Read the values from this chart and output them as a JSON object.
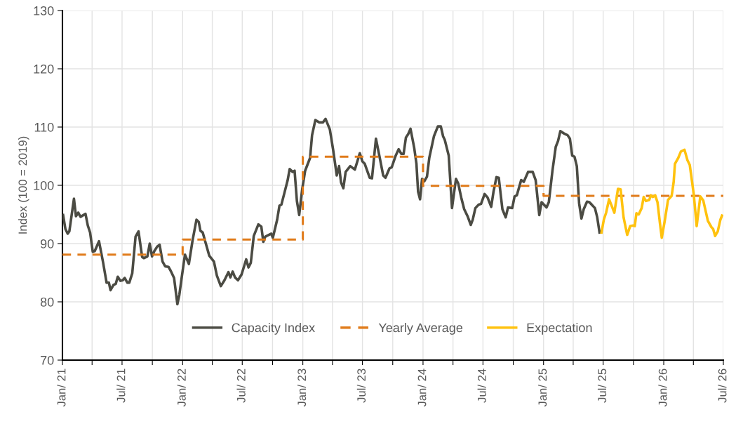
{
  "chart_data": {
    "type": "line",
    "ylabel": "Index (100 = 2019)",
    "xlim": [
      "2021-01-01",
      "2026-07-01"
    ],
    "ylim": [
      70,
      130
    ],
    "xticks": [
      {
        "value": "2021-01-01",
        "label": "Jan/ 21"
      },
      {
        "value": "2021-04-01",
        "label": null
      },
      {
        "value": "2021-07-01",
        "label": "Jul/ 21"
      },
      {
        "value": "2021-10-01",
        "label": null
      },
      {
        "value": "2022-01-01",
        "label": "Jan/ 22"
      },
      {
        "value": "2022-04-01",
        "label": null
      },
      {
        "value": "2022-07-01",
        "label": "Jul/ 22"
      },
      {
        "value": "2022-10-01",
        "label": null
      },
      {
        "value": "2023-01-01",
        "label": "Jan/ 23"
      },
      {
        "value": "2023-04-01",
        "label": null
      },
      {
        "value": "2023-07-01",
        "label": "Jul/ 23"
      },
      {
        "value": "2023-10-01",
        "label": null
      },
      {
        "value": "2024-01-01",
        "label": "Jan/ 24"
      },
      {
        "value": "2024-04-01",
        "label": null
      },
      {
        "value": "2024-07-01",
        "label": "Jul/ 24"
      },
      {
        "value": "2024-10-01",
        "label": null
      },
      {
        "value": "2025-01-01",
        "label": "Jan/ 25"
      },
      {
        "value": "2025-04-01",
        "label": null
      },
      {
        "value": "2025-07-01",
        "label": "Jul/ 25"
      },
      {
        "value": "2025-10-01",
        "label": null
      },
      {
        "value": "2026-01-01",
        "label": "Jan/ 26"
      },
      {
        "value": "2026-04-01",
        "label": null
      },
      {
        "value": "2026-07-01",
        "label": "Jul/ 26"
      }
    ],
    "yticks": [
      70,
      80,
      90,
      100,
      110,
      120,
      130
    ],
    "grid": true,
    "legend": "bottom",
    "marker": "none",
    "series": [
      {
        "name": "Capacity Index",
        "type": "line",
        "line_style": "solid",
        "color": "#4b4b43",
        "x": [
          "2021-01-03",
          "2021-01-10",
          "2021-01-17",
          "2021-01-22",
          "2021-02-05",
          "2021-02-11",
          "2021-02-18",
          "2021-02-25",
          "2021-03-12",
          "2021-03-19",
          "2021-03-26",
          "2021-04-03",
          "2021-04-09",
          "2021-04-22",
          "2021-05-04",
          "2021-05-15",
          "2021-05-22",
          "2021-05-27",
          "2021-06-05",
          "2021-06-12",
          "2021-06-18",
          "2021-06-26",
          "2021-07-03",
          "2021-07-09",
          "2021-07-17",
          "2021-07-23",
          "2021-08-01",
          "2021-08-11",
          "2021-08-20",
          "2021-08-31",
          "2021-09-05",
          "2021-09-16",
          "2021-09-23",
          "2021-09-30",
          "2021-10-07",
          "2021-10-16",
          "2021-10-23",
          "2021-11-01",
          "2021-11-09",
          "2021-11-19",
          "2021-11-26",
          "2021-12-06",
          "2021-12-16",
          "2021-12-22",
          "2021-12-28",
          "2022-01-08",
          "2022-01-20",
          "2022-01-31",
          "2022-02-12",
          "2022-02-19",
          "2022-02-24",
          "2022-03-03",
          "2022-03-12",
          "2022-03-23",
          "2022-04-06",
          "2022-04-15",
          "2022-04-27",
          "2022-05-08",
          "2022-05-20",
          "2022-05-26",
          "2022-06-02",
          "2022-06-09",
          "2022-06-18",
          "2022-06-29",
          "2022-07-13",
          "2022-07-20",
          "2022-07-27",
          "2022-08-05",
          "2022-08-19",
          "2022-08-28",
          "2022-09-03",
          "2022-09-09",
          "2022-09-27",
          "2022-10-02",
          "2022-10-15",
          "2022-10-22",
          "2022-10-28",
          "2022-11-07",
          "2022-11-16",
          "2022-11-22",
          "2022-12-01",
          "2022-12-07",
          "2022-12-14",
          "2022-12-21",
          "2022-12-30",
          "2023-01-08",
          "2023-01-23",
          "2023-01-29",
          "2023-02-08",
          "2023-02-20",
          "2023-03-03",
          "2023-03-11",
          "2023-03-24",
          "2023-04-03",
          "2023-04-14",
          "2023-04-21",
          "2023-04-27",
          "2023-05-04",
          "2023-05-11",
          "2023-05-25",
          "2023-06-08",
          "2023-06-23",
          "2023-07-01",
          "2023-07-08",
          "2023-07-23",
          "2023-07-30",
          "2023-08-11",
          "2023-08-22",
          "2023-09-02",
          "2023-09-09",
          "2023-09-21",
          "2023-09-28",
          "2023-10-10",
          "2023-10-19",
          "2023-10-27",
          "2023-11-03",
          "2023-11-10",
          "2023-11-17",
          "2023-11-24",
          "2023-12-05",
          "2023-12-12",
          "2023-12-17",
          "2023-12-23",
          "2023-12-29",
          "2024-01-05",
          "2024-01-13",
          "2024-01-20",
          "2024-02-03",
          "2024-02-15",
          "2024-02-24",
          "2024-03-02",
          "2024-03-07",
          "2024-03-19",
          "2024-03-29",
          "2024-04-10",
          "2024-04-17",
          "2024-04-26",
          "2024-05-05",
          "2024-05-16",
          "2024-05-25",
          "2024-05-31",
          "2024-06-08",
          "2024-06-18",
          "2024-06-25",
          "2024-07-06",
          "2024-07-15",
          "2024-07-26",
          "2024-08-02",
          "2024-08-11",
          "2024-08-18",
          "2024-08-29",
          "2024-09-08",
          "2024-09-15",
          "2024-09-28",
          "2024-10-05",
          "2024-10-12",
          "2024-10-25",
          "2024-11-02",
          "2024-11-15",
          "2024-11-29",
          "2024-12-08",
          "2024-12-19",
          "2024-12-26",
          "2025-01-10",
          "2025-01-17",
          "2025-01-28",
          "2025-02-07",
          "2025-02-14",
          "2025-02-21",
          "2025-03-04",
          "2025-03-15",
          "2025-03-22",
          "2025-03-29",
          "2025-04-05",
          "2025-04-12",
          "2025-04-19",
          "2025-04-26",
          "2025-05-03",
          "2025-05-13",
          "2025-05-20",
          "2025-05-27",
          "2025-06-06",
          "2025-06-13",
          "2025-06-20"
        ],
        "values": [
          94.9,
          92.5,
          91.7,
          92.1,
          97.7,
          94.7,
          95.3,
          94.6,
          95.1,
          93.1,
          91.9,
          88.6,
          88.7,
          90.4,
          86.9,
          83.3,
          83.3,
          82.0,
          82.9,
          83.1,
          84.3,
          83.6,
          83.7,
          84.1,
          83.3,
          83.3,
          84.9,
          91.2,
          92.1,
          87.7,
          87.5,
          87.8,
          90.0,
          87.8,
          88.7,
          89.5,
          89.8,
          86.9,
          86.1,
          86.0,
          85.3,
          84.1,
          79.6,
          81.2,
          83.7,
          88.1,
          86.5,
          90.5,
          94.1,
          93.7,
          92.2,
          91.9,
          90.1,
          87.9,
          86.9,
          84.5,
          82.7,
          83.7,
          85.1,
          84.2,
          85.2,
          84.2,
          83.7,
          84.7,
          87.3,
          85.9,
          86.7,
          91.3,
          93.3,
          92.9,
          90.3,
          91.2,
          91.7,
          91.0,
          94.1,
          96.5,
          96.7,
          98.9,
          100.9,
          102.8,
          102.3,
          102.5,
          97.3,
          94.9,
          99.3,
          102.5,
          104.7,
          108.6,
          111.2,
          110.8,
          110.8,
          111.4,
          109.6,
          106.1,
          101.7,
          103.3,
          100.5,
          99.5,
          102.3,
          103.3,
          102.7,
          105.5,
          104.1,
          103.7,
          101.3,
          101.2,
          108.0,
          104.9,
          101.7,
          101.3,
          102.9,
          103.1,
          105.1,
          106.2,
          105.4,
          105.4,
          108.2,
          108.8,
          109.7,
          106.5,
          103.7,
          98.9,
          97.6,
          101.1,
          100.7,
          101.5,
          104.7,
          108.4,
          110.1,
          110.1,
          108.4,
          107.8,
          105.1,
          96.1,
          101.1,
          100.3,
          97.9,
          95.9,
          94.6,
          93.2,
          94.1,
          96.1,
          96.7,
          96.8,
          98.5,
          97.9,
          96.3,
          98.9,
          101.4,
          101.3,
          95.9,
          94.5,
          96.2,
          96.1,
          98.1,
          98.3,
          100.9,
          100.6,
          102.3,
          102.3,
          100.9,
          94.9,
          97.1,
          96.2,
          97.1,
          102.5,
          106.6,
          107.6,
          109.3,
          108.9,
          108.6,
          108.0,
          105.1,
          104.9,
          103.3,
          96.9,
          94.3,
          95.9,
          97.2,
          97.1,
          96.7,
          96.1,
          94.5,
          91.9
        ]
      },
      {
        "name": "Yearly Average",
        "type": "step",
        "line_style": "dashed",
        "color": "#e07b1a",
        "x": [
          "2021-01-01",
          "2022-01-01",
          "2023-01-01",
          "2024-01-01",
          "2025-01-01",
          "2026-07-01"
        ],
        "values": [
          88.1,
          90.7,
          104.9,
          99.9,
          98.2,
          98.2
        ]
      },
      {
        "name": "Expectation",
        "type": "line",
        "line_style": "solid",
        "color": "#ffc20e",
        "x": [
          "2025-06-26",
          "2025-07-03",
          "2025-07-10",
          "2025-07-19",
          "2025-07-28",
          "2025-08-04",
          "2025-08-15",
          "2025-08-23",
          "2025-09-01",
          "2025-09-12",
          "2025-09-21",
          "2025-09-30",
          "2025-10-05",
          "2025-10-10",
          "2025-10-17",
          "2025-10-26",
          "2025-11-01",
          "2025-11-08",
          "2025-11-18",
          "2025-11-23",
          "2025-11-29",
          "2025-12-06",
          "2025-12-13",
          "2025-12-20",
          "2025-12-26",
          "2026-01-04",
          "2026-01-14",
          "2026-01-25",
          "2026-01-31",
          "2026-02-04",
          "2026-02-14",
          "2026-02-22",
          "2026-03-05",
          "2026-03-14",
          "2026-03-21",
          "2026-04-02",
          "2026-04-11",
          "2026-04-22",
          "2026-05-01",
          "2026-05-15",
          "2026-05-26",
          "2026-05-31",
          "2026-06-06",
          "2026-06-14",
          "2026-06-22",
          "2026-06-27"
        ],
        "values": [
          91.9,
          94.1,
          95.3,
          97.6,
          96.3,
          95.3,
          99.4,
          99.3,
          94.5,
          91.5,
          93.0,
          93.1,
          93.0,
          95.2,
          95.0,
          96.1,
          98.0,
          97.3,
          97.5,
          98.3,
          98.0,
          98.3,
          97.1,
          93.7,
          91.0,
          93.9,
          97.5,
          98.2,
          100.5,
          103.7,
          104.7,
          105.8,
          106.1,
          104.3,
          103.5,
          98.5,
          93.0,
          98.1,
          97.4,
          93.9,
          92.8,
          92.5,
          91.3,
          92.1,
          94.1,
          94.8
        ]
      }
    ]
  }
}
